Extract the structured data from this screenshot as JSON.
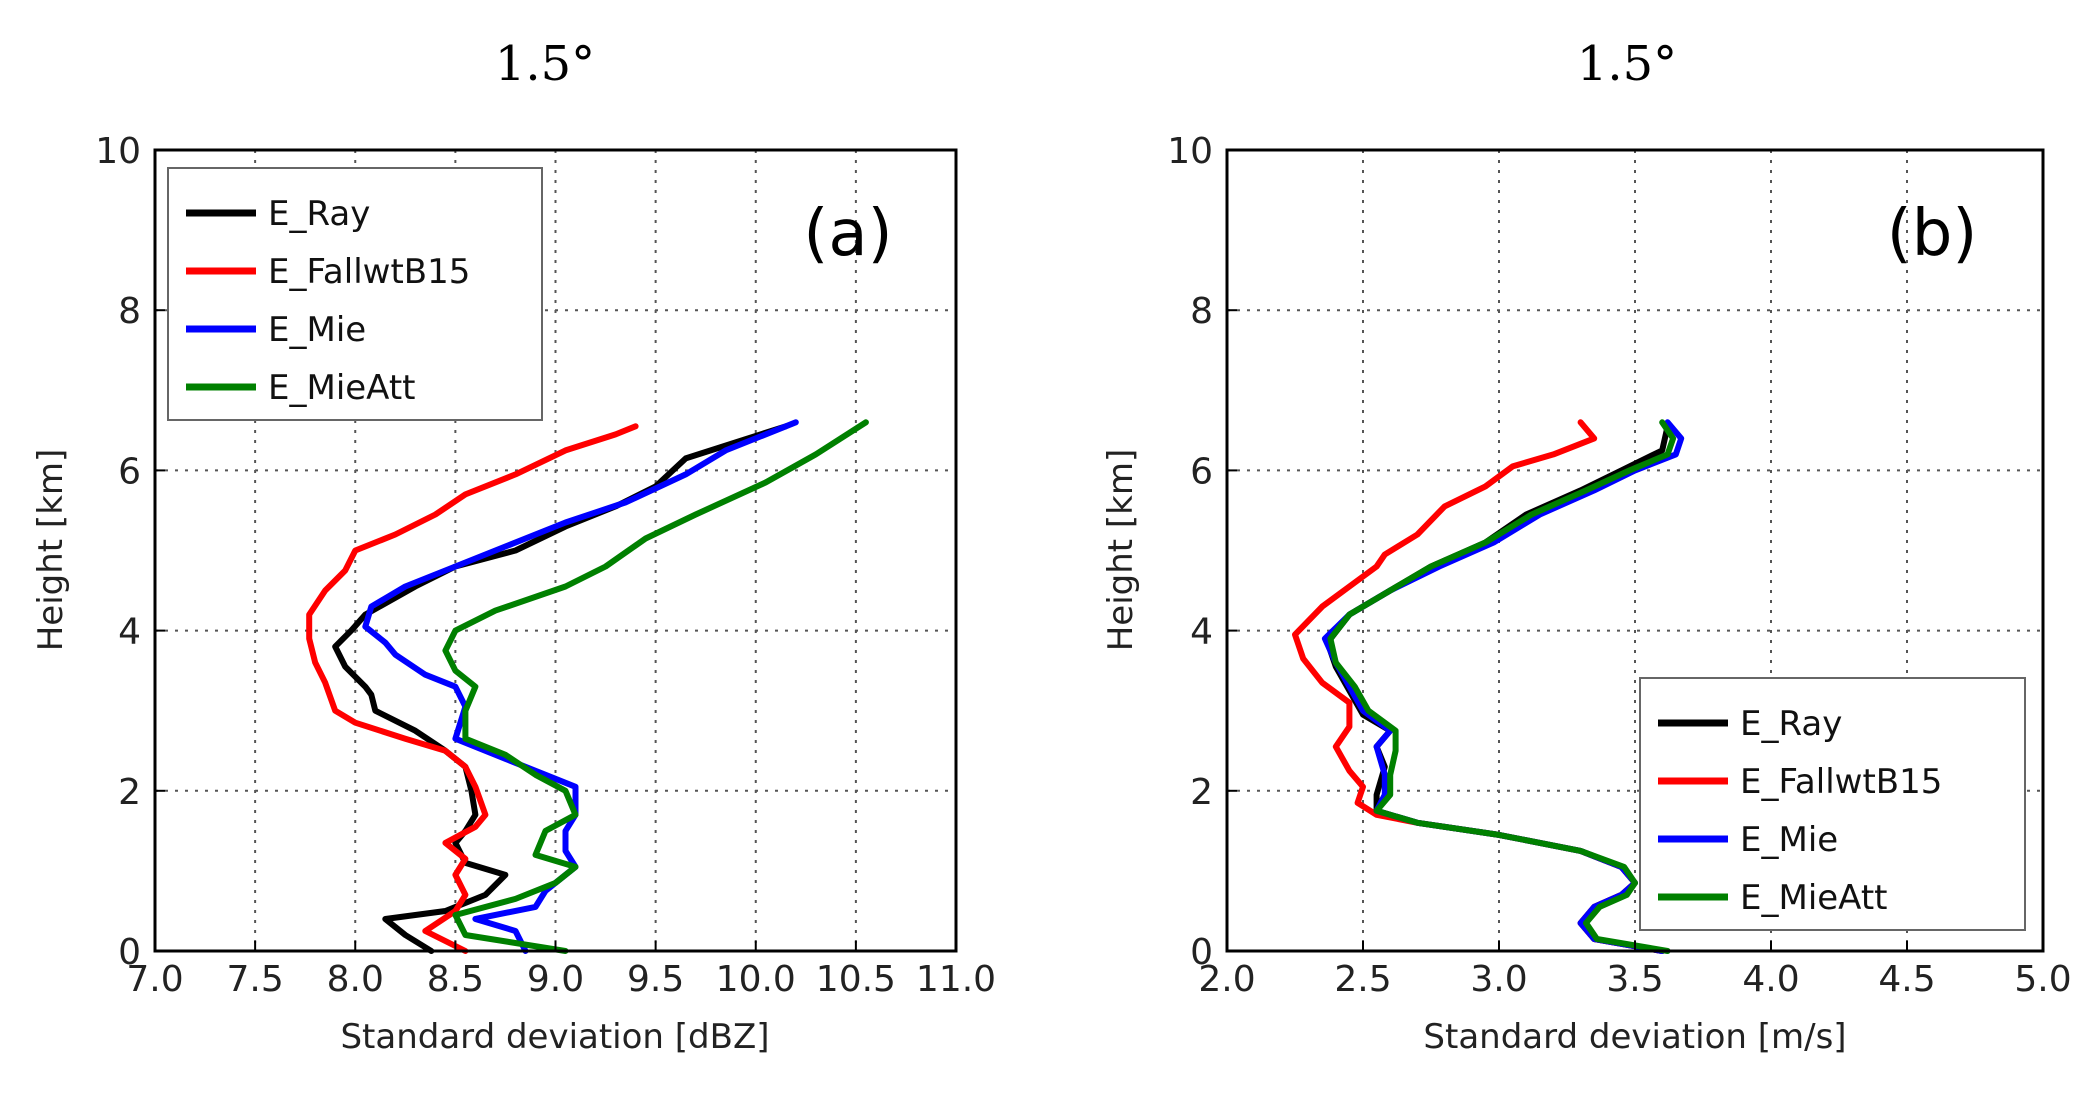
{
  "chart_data": [
    {
      "type": "line",
      "panel_id": "a",
      "title": "1.5°",
      "panel_label": "(a)",
      "xlabel": "Standard deviation [dBZ]",
      "ylabel": "Height [km]",
      "xlim": [
        7.0,
        11.0
      ],
      "ylim": [
        0,
        10
      ],
      "xticks": [
        "7.0",
        "7.5",
        "8.0",
        "8.5",
        "9.0",
        "9.5",
        "10.0",
        "10.5",
        "11.0"
      ],
      "yticks": [
        "0",
        "2",
        "4",
        "6",
        "8",
        "10"
      ],
      "grid": true,
      "legend_position": "top-left",
      "series": [
        {
          "name": "E_Ray",
          "color": "#000000",
          "points": [
            [
              8.38,
              0.0
            ],
            [
              8.25,
              0.2
            ],
            [
              8.15,
              0.4
            ],
            [
              8.45,
              0.5
            ],
            [
              8.65,
              0.7
            ],
            [
              8.75,
              0.95
            ],
            [
              8.55,
              1.1
            ],
            [
              8.5,
              1.35
            ],
            [
              8.55,
              1.5
            ],
            [
              8.6,
              1.7
            ],
            [
              8.58,
              2.0
            ],
            [
              8.55,
              2.3
            ],
            [
              8.45,
              2.5
            ],
            [
              8.3,
              2.75
            ],
            [
              8.1,
              3.0
            ],
            [
              8.08,
              3.2
            ],
            [
              8.05,
              3.3
            ],
            [
              7.95,
              3.55
            ],
            [
              7.9,
              3.8
            ],
            [
              7.98,
              4.0
            ],
            [
              8.05,
              4.2
            ],
            [
              8.3,
              4.55
            ],
            [
              8.5,
              4.8
            ],
            [
              8.8,
              5.0
            ],
            [
              9.05,
              5.3
            ],
            [
              9.3,
              5.55
            ],
            [
              9.5,
              5.8
            ],
            [
              9.65,
              6.15
            ],
            [
              9.9,
              6.35
            ],
            [
              10.15,
              6.55
            ]
          ]
        },
        {
          "name": "E_FallwtB15",
          "color": "#ff0000",
          "points": [
            [
              8.55,
              0.0
            ],
            [
              8.35,
              0.25
            ],
            [
              8.5,
              0.5
            ],
            [
              8.55,
              0.7
            ],
            [
              8.5,
              0.95
            ],
            [
              8.55,
              1.15
            ],
            [
              8.45,
              1.35
            ],
            [
              8.6,
              1.55
            ],
            [
              8.65,
              1.7
            ],
            [
              8.6,
              2.05
            ],
            [
              8.55,
              2.3
            ],
            [
              8.45,
              2.5
            ],
            [
              8.25,
              2.65
            ],
            [
              8.0,
              2.85
            ],
            [
              7.9,
              3.0
            ],
            [
              7.85,
              3.35
            ],
            [
              7.8,
              3.6
            ],
            [
              7.77,
              3.9
            ],
            [
              7.77,
              4.2
            ],
            [
              7.85,
              4.5
            ],
            [
              7.95,
              4.75
            ],
            [
              8.0,
              5.0
            ],
            [
              8.2,
              5.2
            ],
            [
              8.4,
              5.45
            ],
            [
              8.55,
              5.7
            ],
            [
              8.8,
              5.95
            ],
            [
              9.05,
              6.25
            ],
            [
              9.3,
              6.45
            ],
            [
              9.4,
              6.55
            ]
          ]
        },
        {
          "name": "E_Mie",
          "color": "#0000ff",
          "points": [
            [
              8.85,
              0.0
            ],
            [
              8.8,
              0.25
            ],
            [
              8.6,
              0.4
            ],
            [
              8.9,
              0.55
            ],
            [
              8.95,
              0.75
            ],
            [
              9.05,
              0.95
            ],
            [
              9.1,
              1.05
            ],
            [
              9.05,
              1.25
            ],
            [
              9.05,
              1.5
            ],
            [
              9.1,
              1.7
            ],
            [
              9.1,
              2.05
            ],
            [
              8.95,
              2.2
            ],
            [
              8.75,
              2.4
            ],
            [
              8.5,
              2.65
            ],
            [
              8.55,
              3.05
            ],
            [
              8.5,
              3.3
            ],
            [
              8.35,
              3.45
            ],
            [
              8.2,
              3.7
            ],
            [
              8.15,
              3.85
            ],
            [
              8.05,
              4.05
            ],
            [
              8.08,
              4.3
            ],
            [
              8.25,
              4.55
            ],
            [
              8.5,
              4.8
            ],
            [
              8.75,
              5.05
            ],
            [
              9.05,
              5.35
            ],
            [
              9.35,
              5.6
            ],
            [
              9.65,
              5.95
            ],
            [
              9.85,
              6.25
            ],
            [
              10.2,
              6.6
            ]
          ]
        },
        {
          "name": "E_MieAtt",
          "color": "#008000",
          "points": [
            [
              9.05,
              0.0
            ],
            [
              8.55,
              0.2
            ],
            [
              8.5,
              0.45
            ],
            [
              8.8,
              0.65
            ],
            [
              9.0,
              0.85
            ],
            [
              9.1,
              1.05
            ],
            [
              8.9,
              1.2
            ],
            [
              8.95,
              1.5
            ],
            [
              9.1,
              1.7
            ],
            [
              9.05,
              2.0
            ],
            [
              8.9,
              2.2
            ],
            [
              8.75,
              2.45
            ],
            [
              8.55,
              2.65
            ],
            [
              8.55,
              3.0
            ],
            [
              8.6,
              3.3
            ],
            [
              8.5,
              3.5
            ],
            [
              8.45,
              3.75
            ],
            [
              8.5,
              4.0
            ],
            [
              8.7,
              4.25
            ],
            [
              9.05,
              4.55
            ],
            [
              9.25,
              4.8
            ],
            [
              9.45,
              5.15
            ],
            [
              9.7,
              5.45
            ],
            [
              10.05,
              5.85
            ],
            [
              10.3,
              6.2
            ],
            [
              10.55,
              6.6
            ]
          ]
        }
      ]
    },
    {
      "type": "line",
      "panel_id": "b",
      "title": "1.5°",
      "panel_label": "(b)",
      "xlabel": "Standard deviation [m/s]",
      "ylabel": "Height [km]",
      "xlim": [
        2.0,
        5.0
      ],
      "ylim": [
        0,
        10
      ],
      "xticks": [
        "2.0",
        "2.5",
        "3.0",
        "3.5",
        "4.0",
        "4.5",
        "5.0"
      ],
      "yticks": [
        "0",
        "2",
        "4",
        "6",
        "8",
        "10"
      ],
      "grid": true,
      "legend_position": "bottom-right",
      "series": [
        {
          "name": "E_Ray",
          "color": "#000000",
          "points": [
            [
              3.6,
              0.0
            ],
            [
              3.35,
              0.15
            ],
            [
              3.3,
              0.35
            ],
            [
              3.35,
              0.55
            ],
            [
              3.45,
              0.7
            ],
            [
              3.5,
              0.85
            ],
            [
              3.45,
              1.05
            ],
            [
              3.3,
              1.25
            ],
            [
              3.0,
              1.45
            ],
            [
              2.7,
              1.6
            ],
            [
              2.55,
              1.75
            ],
            [
              2.55,
              1.95
            ],
            [
              2.58,
              2.3
            ],
            [
              2.55,
              2.55
            ],
            [
              2.6,
              2.75
            ],
            [
              2.5,
              2.95
            ],
            [
              2.45,
              3.25
            ],
            [
              2.4,
              3.55
            ],
            [
              2.37,
              3.85
            ],
            [
              2.45,
              4.2
            ],
            [
              2.6,
              4.5
            ],
            [
              2.75,
              4.8
            ],
            [
              2.95,
              5.1
            ],
            [
              3.1,
              5.45
            ],
            [
              3.3,
              5.75
            ],
            [
              3.45,
              6.0
            ],
            [
              3.6,
              6.25
            ],
            [
              3.62,
              6.55
            ]
          ]
        },
        {
          "name": "E_FallwtB15",
          "color": "#ff0000",
          "points": [
            [
              3.3,
              6.6
            ],
            [
              3.35,
              6.4
            ],
            [
              3.2,
              6.2
            ],
            [
              3.05,
              6.05
            ],
            [
              2.95,
              5.8
            ],
            [
              2.8,
              5.55
            ],
            [
              2.7,
              5.2
            ],
            [
              2.58,
              4.95
            ],
            [
              2.55,
              4.8
            ],
            [
              2.45,
              4.55
            ],
            [
              2.35,
              4.3
            ],
            [
              2.25,
              3.95
            ],
            [
              2.28,
              3.65
            ],
            [
              2.35,
              3.35
            ],
            [
              2.45,
              3.1
            ],
            [
              2.45,
              2.8
            ],
            [
              2.4,
              2.55
            ],
            [
              2.45,
              2.25
            ],
            [
              2.5,
              2.05
            ],
            [
              2.48,
              1.85
            ],
            [
              2.55,
              1.7
            ],
            [
              2.7,
              1.6
            ],
            [
              3.0,
              1.45
            ],
            [
              3.3,
              1.25
            ],
            [
              3.45,
              1.05
            ],
            [
              3.5,
              0.85
            ],
            [
              3.45,
              0.7
            ],
            [
              3.35,
              0.55
            ],
            [
              3.3,
              0.35
            ],
            [
              3.35,
              0.15
            ],
            [
              3.6,
              0.0
            ]
          ]
        },
        {
          "name": "E_Mie",
          "color": "#0000ff",
          "points": [
            [
              3.6,
              0.0
            ],
            [
              3.35,
              0.15
            ],
            [
              3.3,
              0.35
            ],
            [
              3.35,
              0.55
            ],
            [
              3.45,
              0.7
            ],
            [
              3.5,
              0.85
            ],
            [
              3.45,
              1.05
            ],
            [
              3.3,
              1.25
            ],
            [
              3.0,
              1.45
            ],
            [
              2.7,
              1.6
            ],
            [
              2.55,
              1.75
            ],
            [
              2.58,
              1.95
            ],
            [
              2.58,
              2.2
            ],
            [
              2.55,
              2.55
            ],
            [
              2.6,
              2.75
            ],
            [
              2.5,
              3.0
            ],
            [
              2.45,
              3.3
            ],
            [
              2.4,
              3.6
            ],
            [
              2.36,
              3.9
            ],
            [
              2.45,
              4.2
            ],
            [
              2.6,
              4.5
            ],
            [
              2.78,
              4.8
            ],
            [
              2.98,
              5.1
            ],
            [
              3.15,
              5.45
            ],
            [
              3.35,
              5.75
            ],
            [
              3.5,
              6.0
            ],
            [
              3.65,
              6.2
            ],
            [
              3.67,
              6.4
            ],
            [
              3.62,
              6.6
            ]
          ]
        },
        {
          "name": "E_MieAtt",
          "color": "#008000",
          "points": [
            [
              3.62,
              0.0
            ],
            [
              3.36,
              0.15
            ],
            [
              3.32,
              0.35
            ],
            [
              3.37,
              0.55
            ],
            [
              3.47,
              0.7
            ],
            [
              3.5,
              0.85
            ],
            [
              3.46,
              1.05
            ],
            [
              3.3,
              1.25
            ],
            [
              3.0,
              1.45
            ],
            [
              2.7,
              1.6
            ],
            [
              2.55,
              1.75
            ],
            [
              2.6,
              1.95
            ],
            [
              2.6,
              2.2
            ],
            [
              2.62,
              2.5
            ],
            [
              2.62,
              2.75
            ],
            [
              2.52,
              3.0
            ],
            [
              2.47,
              3.3
            ],
            [
              2.4,
              3.6
            ],
            [
              2.38,
              3.9
            ],
            [
              2.45,
              4.2
            ],
            [
              2.6,
              4.5
            ],
            [
              2.75,
              4.8
            ],
            [
              2.95,
              5.1
            ],
            [
              3.12,
              5.45
            ],
            [
              3.32,
              5.75
            ],
            [
              3.48,
              6.0
            ],
            [
              3.62,
              6.2
            ],
            [
              3.64,
              6.4
            ],
            [
              3.6,
              6.6
            ]
          ]
        }
      ]
    }
  ]
}
